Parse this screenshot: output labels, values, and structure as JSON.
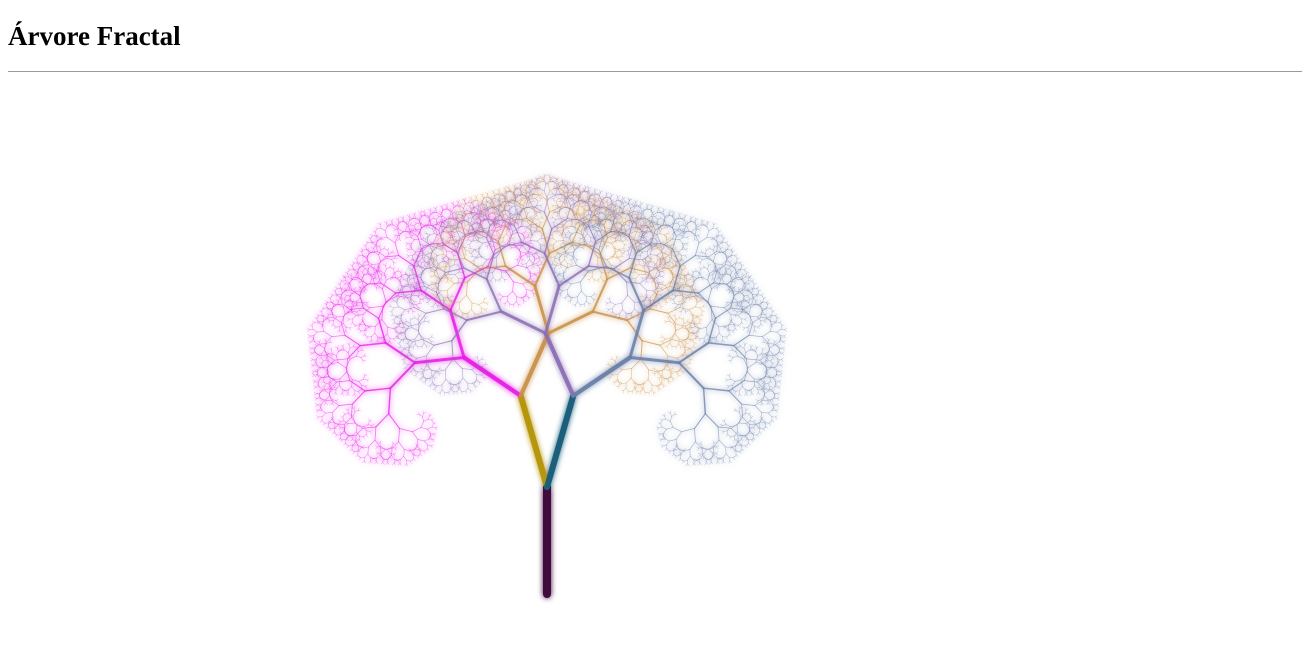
{
  "page": {
    "title": "Árvore Fractal"
  },
  "tree": {
    "depth": 11,
    "branch_angle_deg": 40,
    "length_ratio": 0.72,
    "colors": {
      "trunk": "#3d0a3a",
      "stem": "#0f6470",
      "left_main": "#b59608",
      "right_main": "#1d5f7a",
      "left_outer": "#e81ce8",
      "left_inner": "#c8924a",
      "right_inner": "#8c6fb4",
      "right_outer": "#6a7fa8",
      "glow": "#ff40ff"
    }
  }
}
